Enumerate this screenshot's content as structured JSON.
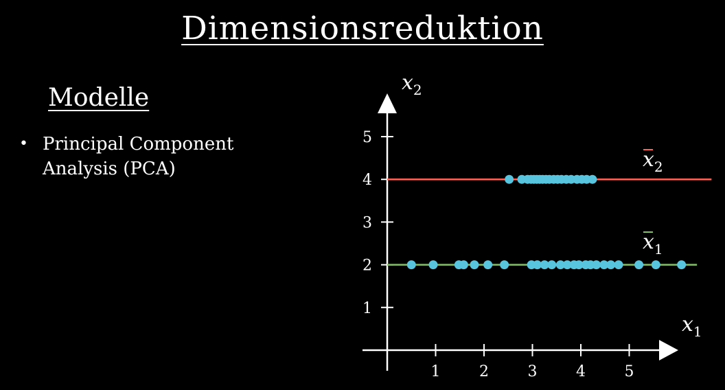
{
  "slide": {
    "title": "Dimensionsreduktion",
    "section": "Modelle",
    "bullets": [
      {
        "text": "Principal Component Analysis (PCA)"
      }
    ]
  },
  "chart_data": {
    "type": "scatter",
    "x_axis": {
      "label_base": "x",
      "label_sub": "1",
      "ticks": [
        1,
        2,
        3,
        4,
        5
      ],
      "range": [
        0,
        5.7
      ]
    },
    "y_axis": {
      "label_base": "x",
      "label_sub": "2",
      "ticks": [
        1,
        2,
        3,
        4,
        5
      ],
      "range": [
        0,
        5.7
      ]
    },
    "grid": false,
    "colors": {
      "points": "#58c4dd",
      "line_x1": "#83c167",
      "line_x2": "#fc6255",
      "axes": "#ffffff"
    },
    "lines": [
      {
        "label_base": "x",
        "label_sub": "2",
        "y": 4,
        "x_from": 0,
        "x_to": 6.7,
        "color": "#fc6255"
      },
      {
        "label_base": "x",
        "label_sub": "1",
        "y": 2,
        "x_from": 0,
        "x_to": 6.4,
        "color": "#83c167"
      }
    ],
    "series": [
      {
        "y": 4,
        "x": [
          2.52,
          2.78,
          2.9,
          2.97,
          3.03,
          3.09,
          3.15,
          3.21,
          3.28,
          3.35,
          3.44,
          3.52,
          3.6,
          3.7,
          3.8,
          3.92,
          4.02,
          4.12,
          4.24
        ]
      },
      {
        "y": 2,
        "x": [
          0.5,
          0.95,
          1.48,
          1.58,
          1.8,
          2.08,
          2.42,
          2.98,
          3.1,
          3.25,
          3.4,
          3.58,
          3.72,
          3.86,
          3.96,
          4.1,
          4.2,
          4.32,
          4.48,
          4.62,
          4.78,
          5.2,
          5.55,
          6.08
        ]
      }
    ]
  }
}
